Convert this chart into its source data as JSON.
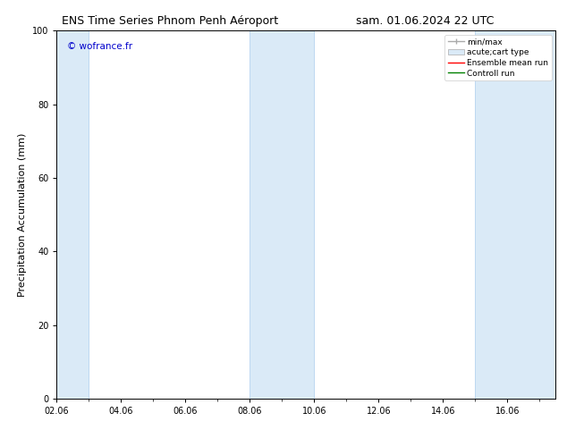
{
  "title_left": "ENS Time Series Phnom Penh Aéroport",
  "title_right": "sam. 01.06.2024 22 UTC",
  "ylabel": "Precipitation Accumulation (mm)",
  "ylim": [
    0,
    100
  ],
  "yticks": [
    0,
    20,
    40,
    60,
    80,
    100
  ],
  "xlim": [
    2.0,
    17.5
  ],
  "xtick_labels": [
    "02.06",
    "04.06",
    "06.06",
    "08.06",
    "10.06",
    "12.06",
    "14.06",
    "16.06"
  ],
  "xtick_positions": [
    2,
    4,
    6,
    8,
    10,
    12,
    14,
    16
  ],
  "shaded_bands": [
    {
      "x_start": 2.0,
      "x_end": 3.0
    },
    {
      "x_start": 8.0,
      "x_end": 10.0
    },
    {
      "x_start": 15.0,
      "x_end": 17.5
    }
  ],
  "shade_color": "#daeaf7",
  "shade_edge_color": "#aaccee",
  "background_color": "#ffffff",
  "watermark_text": "© wofrance.fr",
  "watermark_color": "#0000cc",
  "legend_labels": [
    "min/max",
    "acute;cart type",
    "Ensemble mean run",
    "Controll run"
  ],
  "legend_colors": [
    "#aaaaaa",
    "#daeaf7",
    "#ff0000",
    "#008000"
  ],
  "title_fontsize": 9,
  "ylabel_fontsize": 8,
  "tick_fontsize": 7,
  "legend_fontsize": 6.5,
  "watermark_fontsize": 7.5
}
